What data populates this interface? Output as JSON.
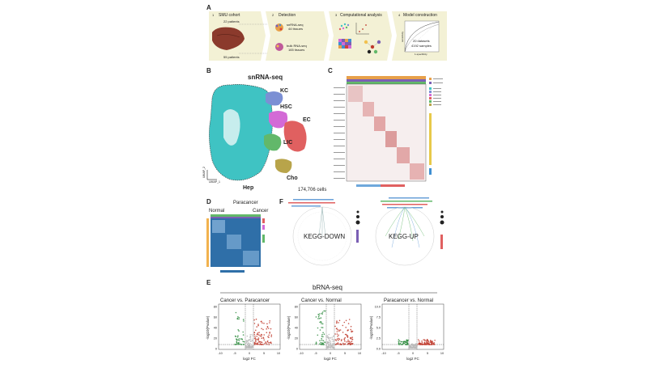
{
  "panels": {
    "A": {
      "letter": "A",
      "steps": [
        {
          "num": "1",
          "title": "SMU cohort",
          "sub1": "22 patients",
          "sub2": "55 patients"
        },
        {
          "num": "2",
          "title": "Detection",
          "sub1": "snRNA-seq",
          "sub1b": "44 tissues",
          "sub2": "bulk RNA-seq",
          "sub2b": "165 tissues"
        },
        {
          "num": "3",
          "title": "Computational analysis"
        },
        {
          "num": "4",
          "title": "Model construction",
          "sub1": "20 datasets",
          "sub2": "4192 samples",
          "xlabel": "1-specificity",
          "ylabel": "sensitivity"
        }
      ],
      "colors": {
        "box": "#f3f1d5",
        "arrow": "#f3f1d5",
        "liver": "#8b3a2c"
      }
    },
    "B": {
      "letter": "B",
      "title": "snRNA-seq",
      "clusters": [
        {
          "name": "KC",
          "color": "#7b8fd4"
        },
        {
          "name": "HSC",
          "color": "#d36ad6"
        },
        {
          "name": "EC",
          "color": "#e06060"
        },
        {
          "name": "LIC",
          "color": "#62b86a"
        },
        {
          "name": "Cho",
          "color": "#b8a44a"
        },
        {
          "name": "Hep",
          "color": "#3fc3c3"
        }
      ],
      "cells_label": "174,706 cells",
      "axis1": "UMAP_1",
      "axis2": "UMAP_2"
    },
    "C": {
      "letter": "C"
    },
    "D": {
      "letter": "D",
      "top_label": "Paracancer",
      "left_label": "Normal",
      "right_label": "Cancer"
    },
    "F": {
      "letter": "F",
      "left_title": "KEGG-DOWN",
      "right_title": "KEGG-UP"
    },
    "E": {
      "letter": "E",
      "title": "bRNA-seq",
      "plots": [
        {
          "title": "Cancer vs. Paracancer",
          "ylabel": "-log10(Pvalue)",
          "xlabel": "log2 FC",
          "yticks": [
            "0",
            "20",
            "40",
            "60",
            "80"
          ],
          "xticks": [
            "-10",
            "-5",
            "0",
            "5",
            "10"
          ]
        },
        {
          "title": "Cancer vs. Normal",
          "ylabel": "-log10(Pvalue)",
          "xlabel": "log2 FC",
          "yticks": [
            "0",
            "20",
            "40",
            "60",
            "80"
          ],
          "xticks": [
            "-10",
            "-5",
            "0",
            "5",
            "10"
          ]
        },
        {
          "title": "Paracancer vs. Normal",
          "ylabel": "-log10(Pvalue)",
          "xlabel": "log2 FC",
          "yticks": [
            "0.0",
            "2.5",
            "5.0",
            "7.5",
            "10.0"
          ],
          "xticks": [
            "-10",
            "-5",
            "0",
            "5",
            "10"
          ]
        }
      ],
      "colors": {
        "up": "#c0392b",
        "down": "#2e8b3e",
        "ns": "#b8b8b8"
      }
    }
  }
}
